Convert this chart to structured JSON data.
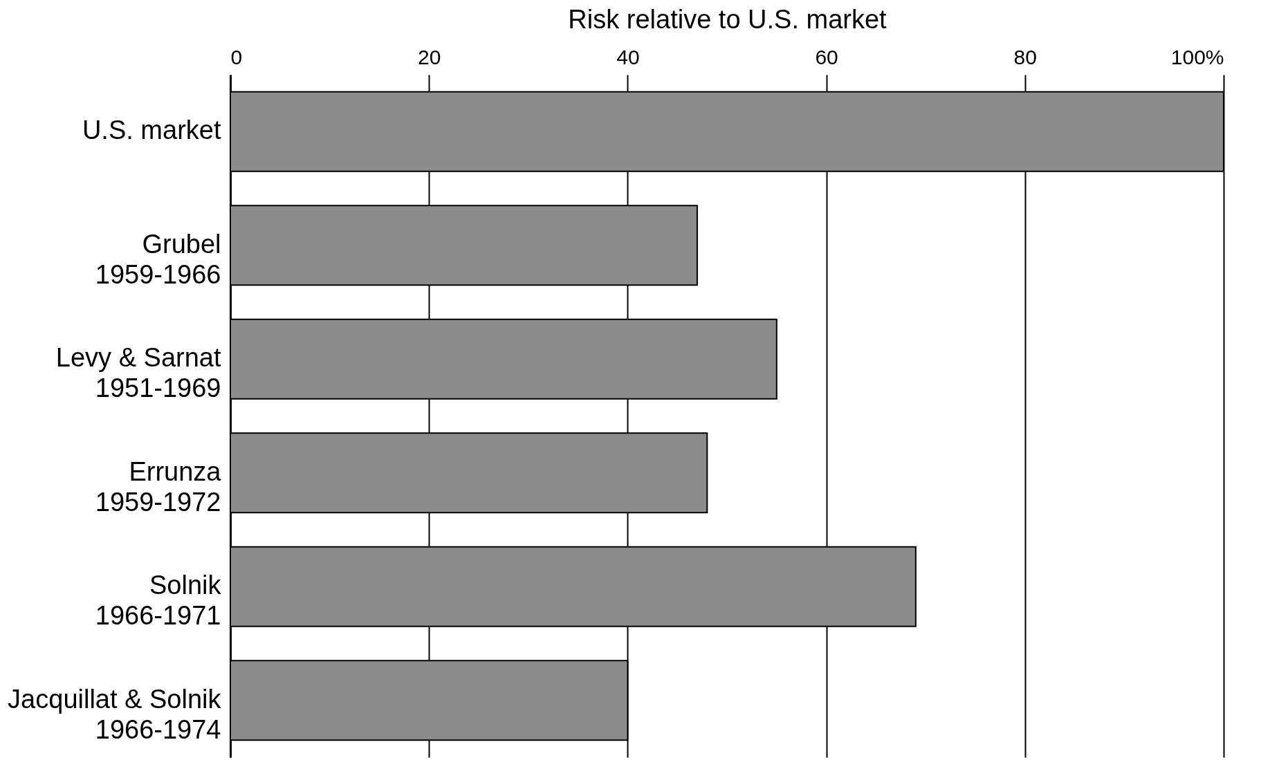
{
  "chart_data": {
    "type": "bar",
    "orientation": "horizontal",
    "xlabel": "Risk relative to U.S. market",
    "categories": [
      "U.S. market",
      "Grubel\n1959-1966",
      "Levy & Sarnat\n1951-1969",
      "Errunza\n1959-1972",
      "Solnik\n1966-1971",
      "Jacquillat & Solnik\n1966-1974"
    ],
    "values": [
      100,
      47,
      55,
      48,
      69,
      40
    ],
    "color": "#8c8c8c",
    "xlim": [
      0,
      100
    ],
    "xticks": [
      0,
      20,
      40,
      60,
      80,
      {
        "value": 100,
        "label": "100%"
      }
    ],
    "grid": "x"
  }
}
